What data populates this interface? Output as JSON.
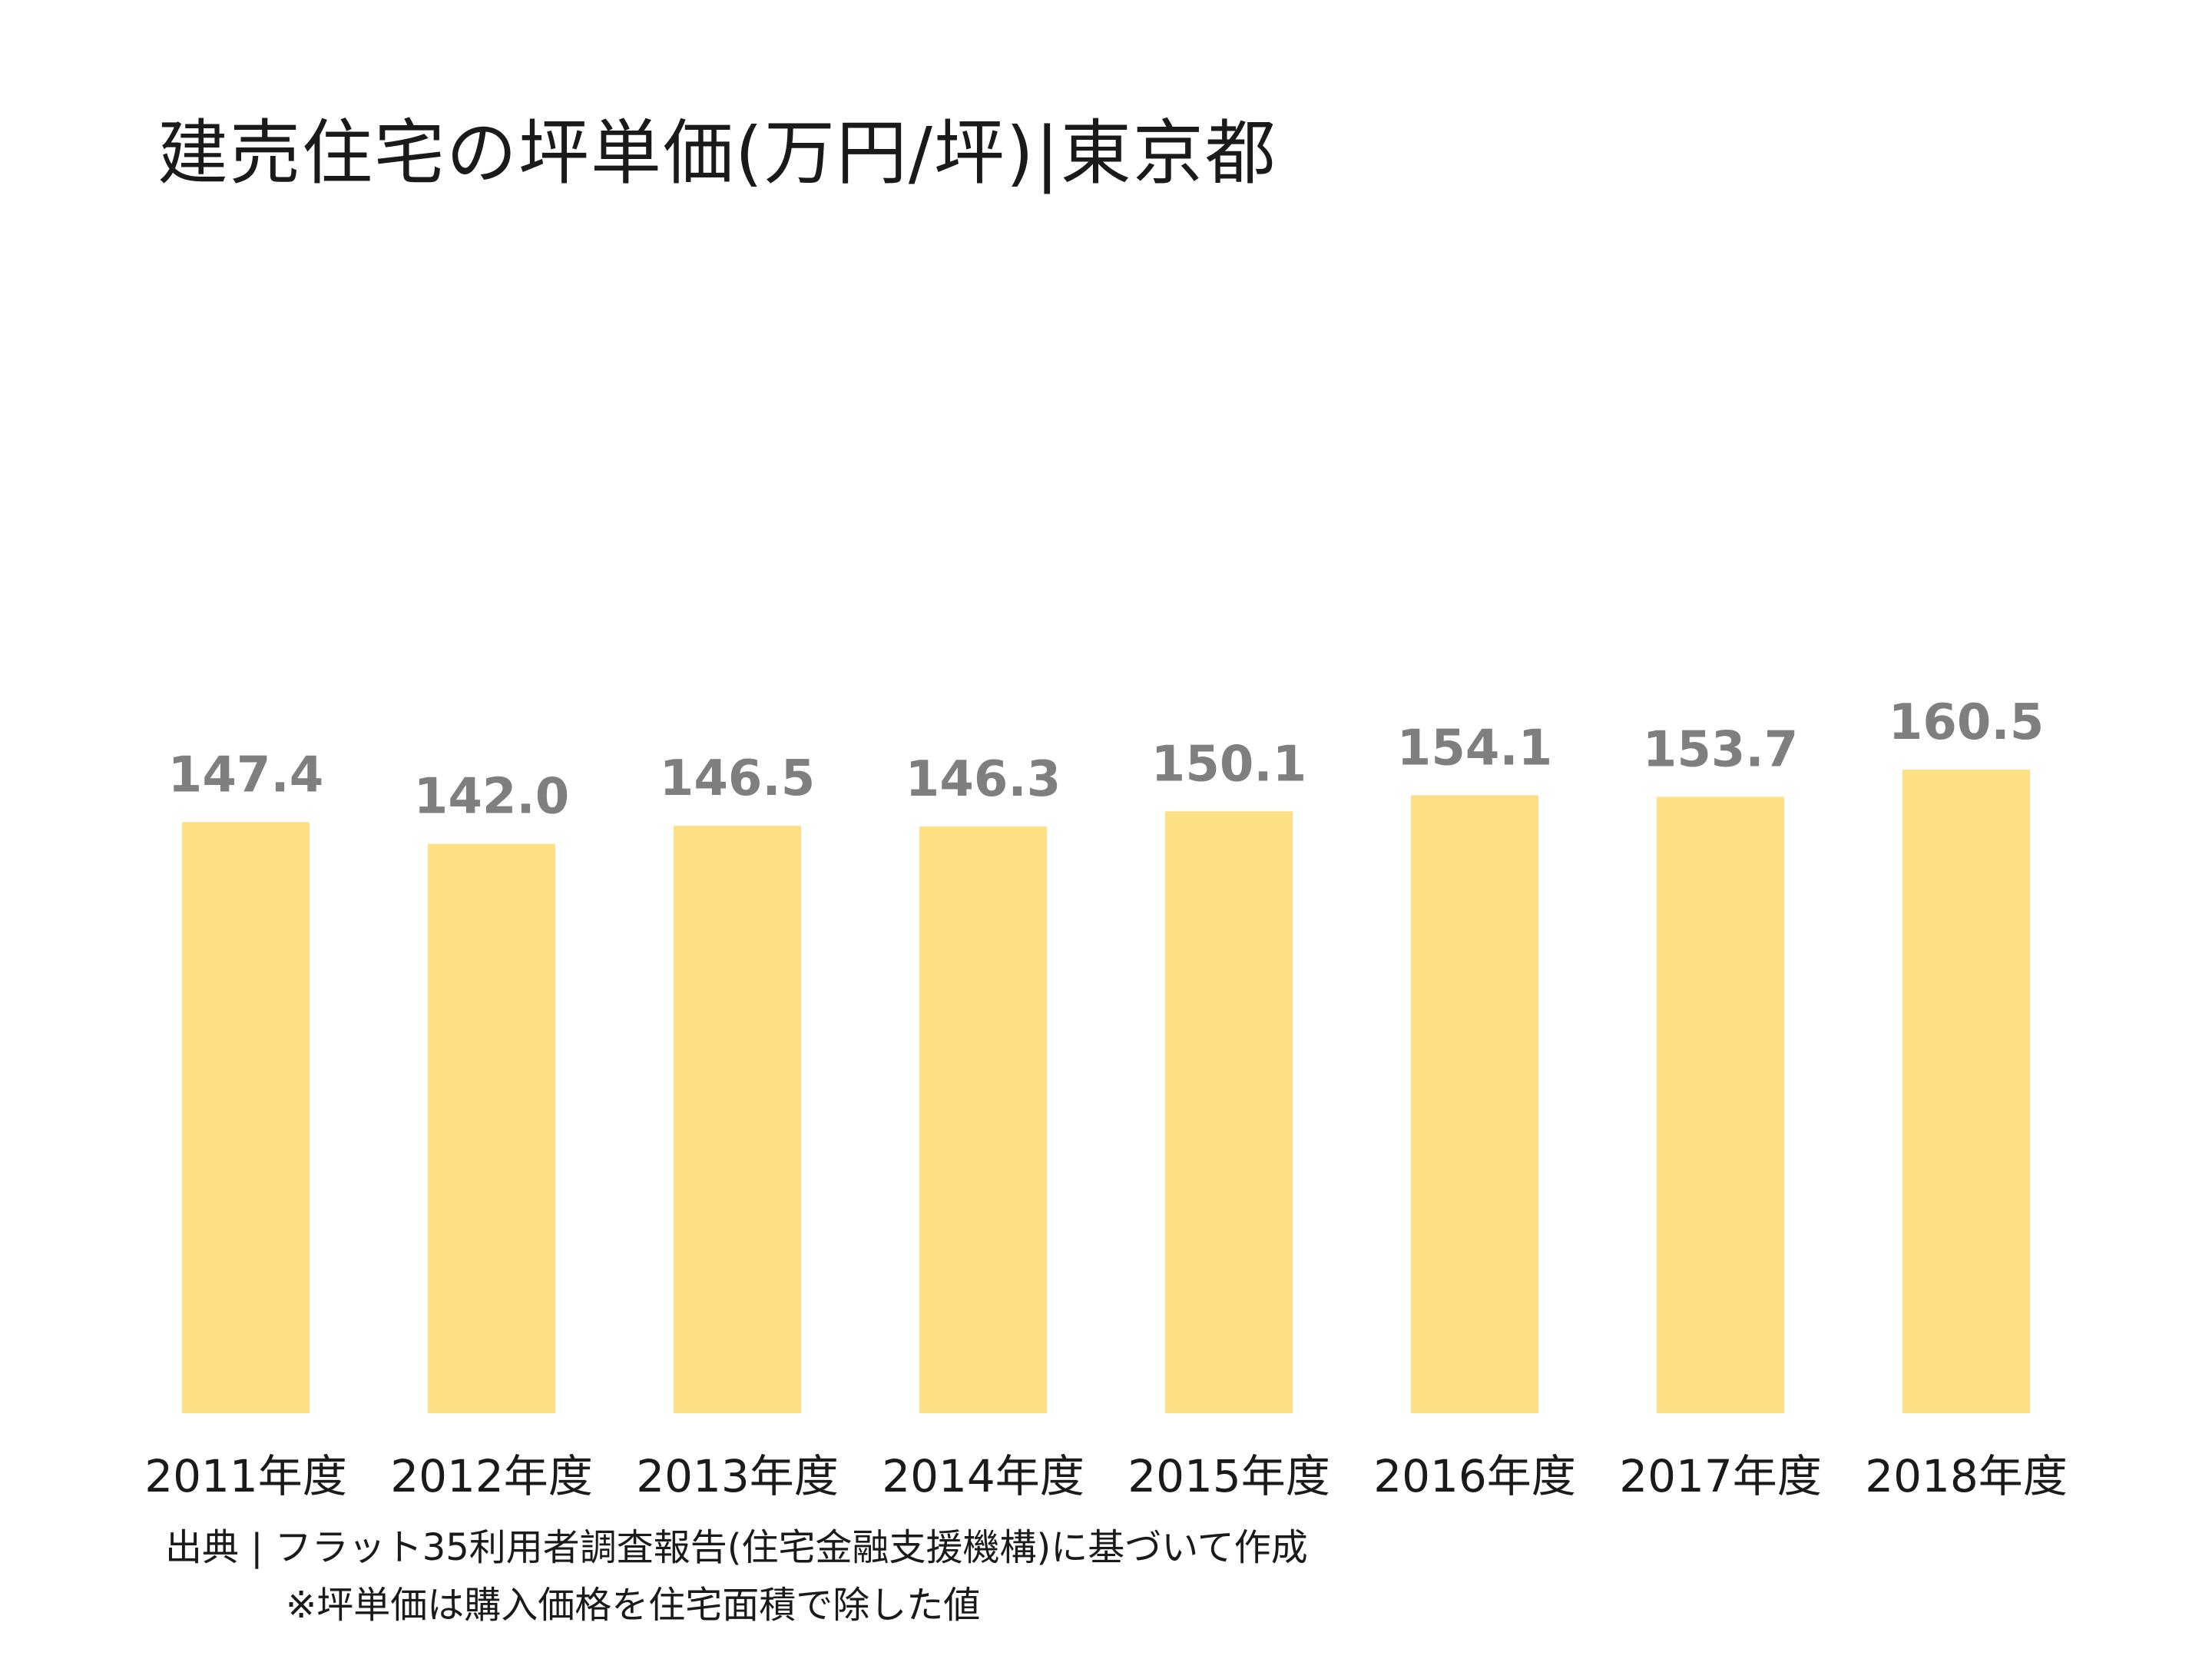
{
  "title": "建売住宅の坪単価(万円/坪)|東京都",
  "chart_data": {
    "type": "bar",
    "title": "建売住宅の坪単価(万円/坪)|東京都",
    "categories": [
      "2011年度",
      "2012年度",
      "2013年度",
      "2014年度",
      "2015年度",
      "2016年度",
      "2017年度",
      "2018年度"
    ],
    "values": [
      147.4,
      142.0,
      146.5,
      146.3,
      150.1,
      154.1,
      153.7,
      160.5
    ],
    "value_labels": [
      "147.4",
      "142.0",
      "146.5",
      "146.3",
      "150.1",
      "154.1",
      "153.7",
      "160.5"
    ],
    "xlabel": "",
    "ylabel": "",
    "ylim": [
      0,
      160.5
    ],
    "grid": false,
    "legend": "none",
    "y_axis_visible": false,
    "bar_color": "#fddf84",
    "label_color": "#7f7f7f"
  },
  "source": "出典 | フラット35利用者調査報告(住宅金融支援機構)に基づいて作成",
  "note": "※坪単価は購入価格を住宅面積で除した値"
}
